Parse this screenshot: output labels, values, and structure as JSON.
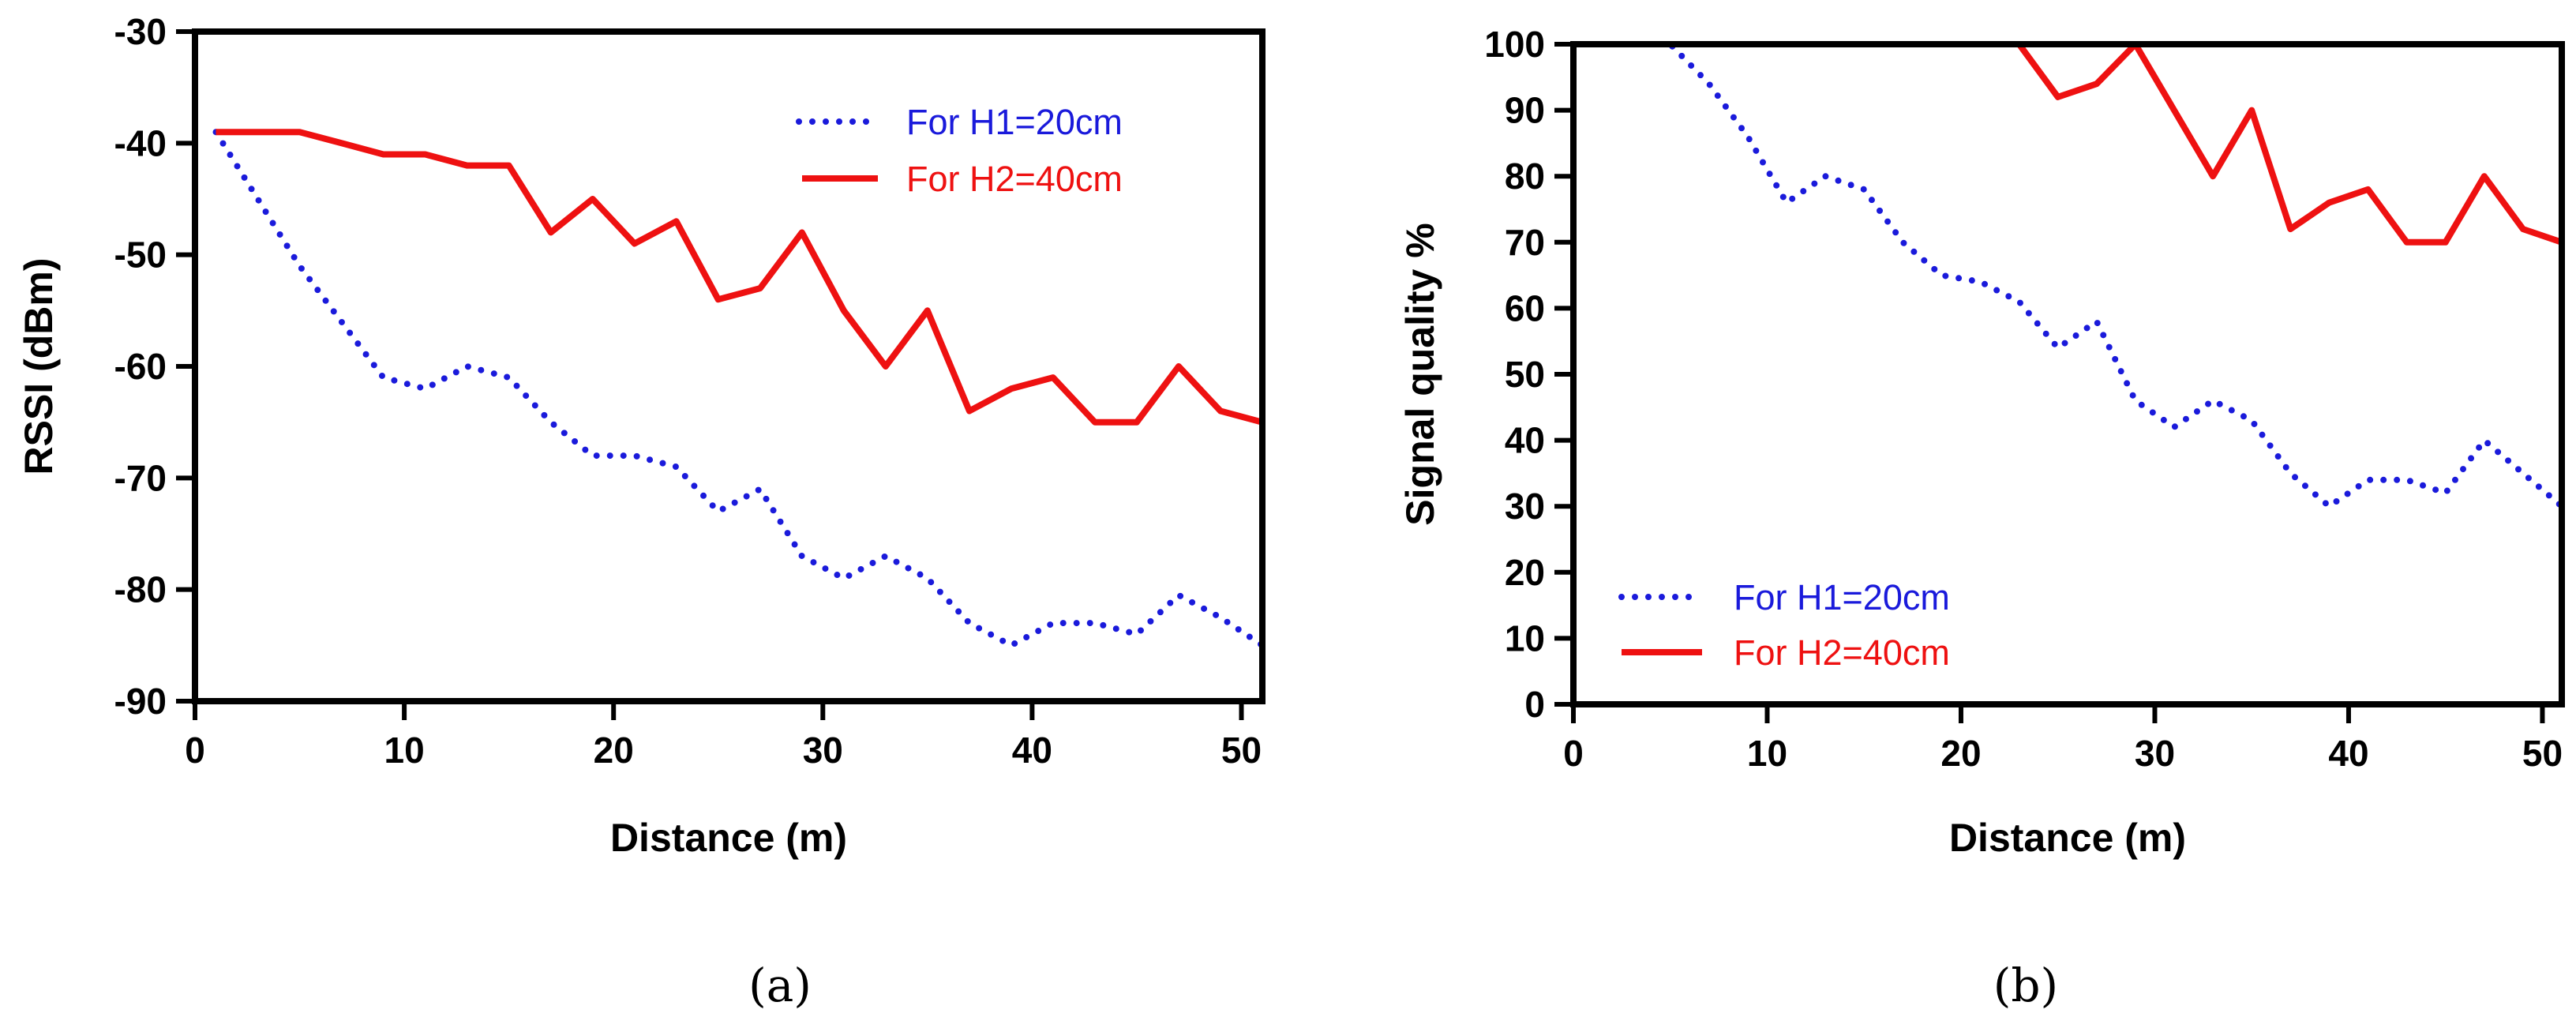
{
  "chart_data": [
    {
      "type": "line",
      "panel_label": "(a)",
      "xlabel": "Distance (m)",
      "ylabel": "RSSI (dBm)",
      "xlim": [
        0,
        51
      ],
      "ylim": [
        -90,
        -30
      ],
      "xticks": [
        0,
        10,
        20,
        30,
        40,
        50
      ],
      "yticks": [
        -90,
        -80,
        -70,
        -60,
        -50,
        -40,
        -30
      ],
      "legend_position": "top-right",
      "grid": false,
      "series": [
        {
          "name": "For H1=20cm",
          "color": "#1a1adb",
          "style": "dotted",
          "x": [
            1,
            3,
            5,
            7,
            9,
            11,
            13,
            15,
            17,
            19,
            21,
            23,
            25,
            27,
            29,
            31,
            33,
            35,
            37,
            39,
            41,
            43,
            45,
            47,
            49,
            51
          ],
          "values": [
            -39,
            -45,
            -51,
            -56,
            -61,
            -62,
            -60,
            -61,
            -65,
            -68,
            -68,
            -69,
            -73,
            -71,
            -77,
            -79,
            -77,
            -79,
            -83,
            -85,
            -83,
            -83,
            -84,
            -80.5,
            -82.5,
            -85
          ]
        },
        {
          "name": "For H2=40cm",
          "color": "#ee1111",
          "style": "solid",
          "x": [
            1,
            3,
            5,
            7,
            9,
            11,
            13,
            15,
            17,
            19,
            21,
            23,
            25,
            27,
            29,
            31,
            33,
            35,
            37,
            39,
            41,
            43,
            45,
            47,
            49,
            51
          ],
          "values": [
            -39,
            -39,
            -39,
            -40,
            -41,
            -41,
            -42,
            -42,
            -48,
            -45,
            -49,
            -47,
            -54,
            -53,
            -48,
            -55,
            -60,
            -55,
            -64,
            -62,
            -61,
            -65,
            -65,
            -60,
            -64,
            -65
          ]
        }
      ]
    },
    {
      "type": "line",
      "panel_label": "(b)",
      "xlabel": "Distance (m)",
      "ylabel": "Signal quality %",
      "xlim": [
        0,
        51
      ],
      "ylim": [
        0,
        100
      ],
      "xticks": [
        0,
        10,
        20,
        30,
        40,
        50
      ],
      "yticks": [
        0,
        10,
        20,
        30,
        40,
        50,
        60,
        70,
        80,
        90,
        100
      ],
      "legend_position": "bottom-left",
      "grid": false,
      "series": [
        {
          "name": "For H1=20cm",
          "color": "#1a1adb",
          "style": "dotted",
          "x": [
            1,
            3,
            5,
            7,
            9,
            11,
            13,
            15,
            17,
            19,
            21,
            23,
            25,
            27,
            29,
            31,
            33,
            35,
            37,
            39,
            41,
            43,
            45,
            47,
            49,
            51
          ],
          "values": [
            100,
            100,
            100,
            94,
            86,
            76,
            80,
            78,
            70,
            65,
            64,
            61,
            54,
            58,
            46,
            42,
            46,
            43,
            35,
            30,
            34,
            34,
            32,
            40,
            35,
            30
          ]
        },
        {
          "name": "For H2=40cm",
          "color": "#ee1111",
          "style": "solid",
          "x": [
            1,
            3,
            5,
            7,
            9,
            11,
            13,
            15,
            17,
            19,
            21,
            23,
            25,
            27,
            29,
            31,
            33,
            35,
            37,
            39,
            41,
            43,
            45,
            47,
            49,
            51
          ],
          "values": [
            100,
            100,
            100,
            100,
            100,
            100,
            100,
            100,
            100,
            100,
            100,
            100,
            92,
            94,
            100,
            90,
            80,
            90,
            72,
            76,
            78,
            70,
            70,
            80,
            72,
            70
          ]
        }
      ]
    }
  ]
}
